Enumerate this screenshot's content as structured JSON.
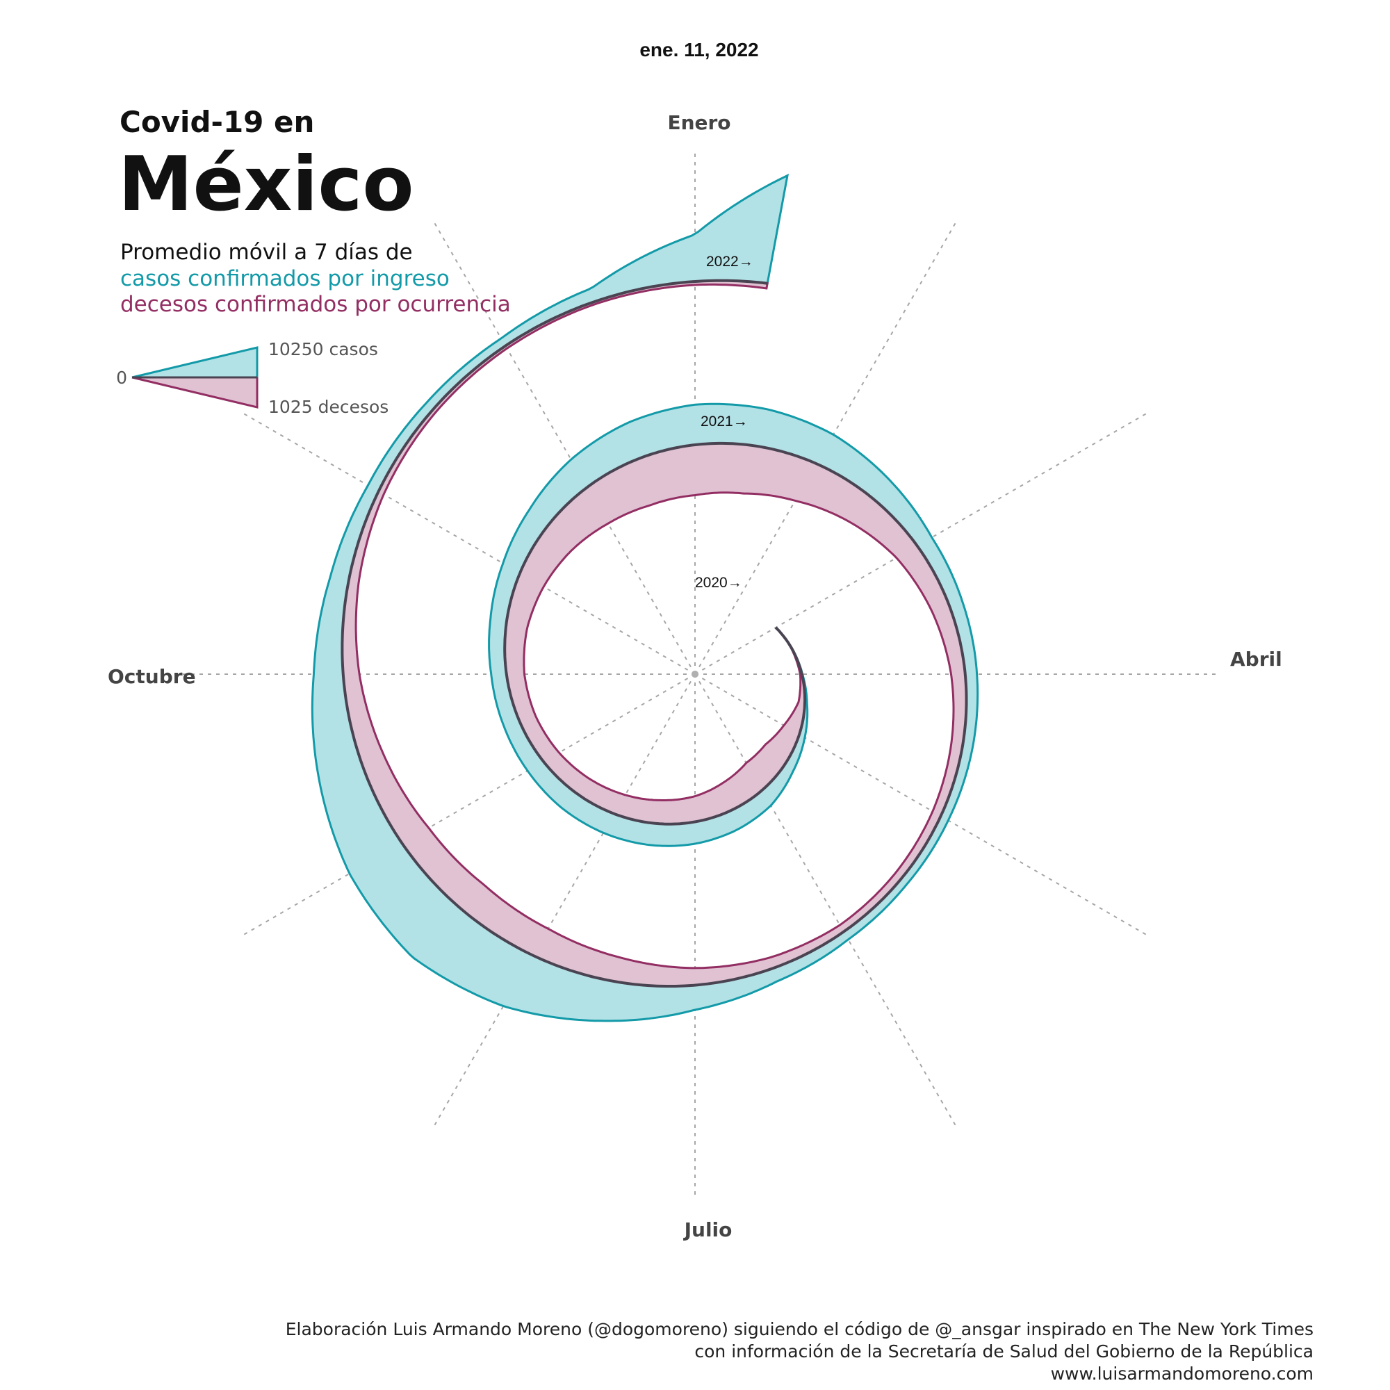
{
  "date_label": "ene. 11, 2022",
  "title": {
    "line1": "Covid-19 en",
    "line2": "México"
  },
  "subtitle": {
    "line1": "Promedio móvil a 7 días de",
    "line2": "casos confirmados por ingreso",
    "line3": "decesos confirmados por ocurrencia"
  },
  "legend": {
    "zero_label": "0",
    "cases_label": "10250 casos",
    "deaths_label": "1025 decesos"
  },
  "months": {
    "top": "Enero",
    "right": "Abril",
    "bottom": "Julio",
    "left": "Octubre"
  },
  "credits": {
    "line1": "Elaboración Luis Armando Moreno (@dogomoreno) siguiendo el código de @_ansgar inspirado en The New York Times",
    "line2": "con información de la Secretaría de Salud del Gobierno de la República",
    "line3": "www.luisarmandomoreno.com"
  },
  "colors": {
    "cases_fill": "#b2e1e6",
    "cases_stroke": "#139aa8",
    "deaths_fill": "#e0c2d2",
    "deaths_stroke": "#932e63",
    "baseline": "#4a4452"
  },
  "chart_data": {
    "type": "area",
    "layout": "spiral",
    "metric": "Promedio móvil a 7 días",
    "x_unit": "months since January 2020",
    "x_end_label": "ene. 11, 2022",
    "year_labels": [
      "2020→",
      "2021→",
      "2022→"
    ],
    "legend_scale": {
      "cases": 10250,
      "deaths": 1025
    },
    "x": [
      2.0,
      2.5,
      3.0,
      3.5,
      4.0,
      4.5,
      5.0,
      5.5,
      6.0,
      6.5,
      7.0,
      7.5,
      8.0,
      8.5,
      9.0,
      9.5,
      10.0,
      10.5,
      11.0,
      11.5,
      12.0,
      12.5,
      13.0,
      13.5,
      14.0,
      14.5,
      15.0,
      15.5,
      16.0,
      16.5,
      17.0,
      17.5,
      18.0,
      18.5,
      19.0,
      19.5,
      20.0,
      20.5,
      21.0,
      21.5,
      22.0,
      22.5,
      23.0,
      23.5,
      24.0,
      24.35
    ],
    "series": [
      {
        "name": "casos confirmados por ingreso",
        "values": [
          0,
          50,
          150,
          600,
          1600,
          2800,
          4500,
          5200,
          5600,
          5700,
          5600,
          5300,
          4700,
          4200,
          3900,
          4200,
          5000,
          6300,
          8200,
          9600,
          10250,
          9800,
          8600,
          6400,
          4300,
          3500,
          3000,
          2600,
          2200,
          2000,
          2300,
          3500,
          6300,
          10500,
          15000,
          17500,
          15500,
          11500,
          7500,
          4800,
          3100,
          2400,
          2200,
          3500,
          12000,
          28000
        ]
      },
      {
        "name": "decesos confirmados por ocurrencia",
        "values": [
          0,
          8,
          40,
          150,
          420,
          650,
          740,
          680,
          600,
          560,
          510,
          460,
          420,
          400,
          420,
          500,
          640,
          800,
          980,
          1120,
          1180,
          1150,
          1000,
          780,
          560,
          430,
          330,
          270,
          220,
          190,
          180,
          260,
          400,
          580,
          720,
          780,
          720,
          560,
          380,
          240,
          140,
          90,
          70,
          60,
          80,
          120
        ]
      }
    ]
  }
}
